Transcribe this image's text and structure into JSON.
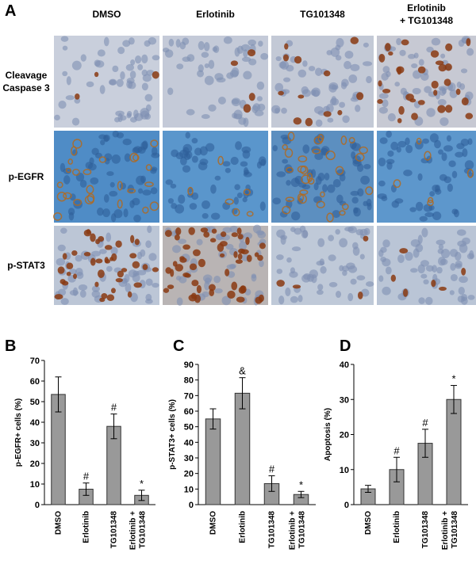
{
  "panel_a": {
    "label": "A",
    "columns": [
      [
        "DMSO"
      ],
      [
        "Erlotinib"
      ],
      [
        "TG101348"
      ],
      [
        "Erlotinib",
        "+ TG101348"
      ]
    ],
    "rows": [
      [
        "Cleavage",
        "Caspase 3"
      ],
      [
        "p-EGFR"
      ],
      [
        "p-STAT3"
      ]
    ]
  },
  "chart_data": [
    {
      "type": "bar",
      "panel": "B",
      "y_label": "p-EGFR+ cells (%)",
      "categories": [
        "DMSO",
        "Erlotinib",
        "TG101348",
        [
          "Erlotinib +",
          "TG101348"
        ]
      ],
      "values": [
        53.5,
        7.5,
        38,
        4.5
      ],
      "errors": [
        8.5,
        3,
        6,
        2.5
      ],
      "annotations": [
        null,
        "#",
        "#",
        "*"
      ],
      "color": "#999999",
      "ylim": [
        0,
        70
      ],
      "yticks": [
        0,
        10,
        20,
        30,
        40,
        50,
        60,
        70
      ]
    },
    {
      "type": "bar",
      "panel": "C",
      "y_label": "p-STAT3+ cells (%)",
      "categories": [
        "DMSO",
        "Erlotinib",
        "TG101348",
        [
          "Erlotinib +",
          "TG101348"
        ]
      ],
      "values": [
        55,
        71.5,
        13.5,
        6.5
      ],
      "errors": [
        6.5,
        10,
        5,
        2
      ],
      "annotations": [
        null,
        "&",
        "#",
        "*"
      ],
      "color": "#999999",
      "ylim": [
        0,
        90
      ],
      "yticks": [
        0,
        10,
        20,
        30,
        40,
        50,
        60,
        70,
        80,
        90
      ]
    },
    {
      "type": "bar",
      "panel": "D",
      "y_label": "Apoptosis (%)",
      "categories": [
        "DMSO",
        "Erlotinib",
        "TG101348",
        [
          "Erlotinib +",
          "TG101348"
        ]
      ],
      "values": [
        4.5,
        10,
        17.5,
        30
      ],
      "errors": [
        1,
        3.5,
        4,
        4
      ],
      "annotations": [
        null,
        "#",
        "#",
        "*"
      ],
      "color": "#999999",
      "ylim": [
        0,
        40
      ],
      "yticks": [
        0,
        10,
        20,
        30,
        40
      ]
    }
  ]
}
